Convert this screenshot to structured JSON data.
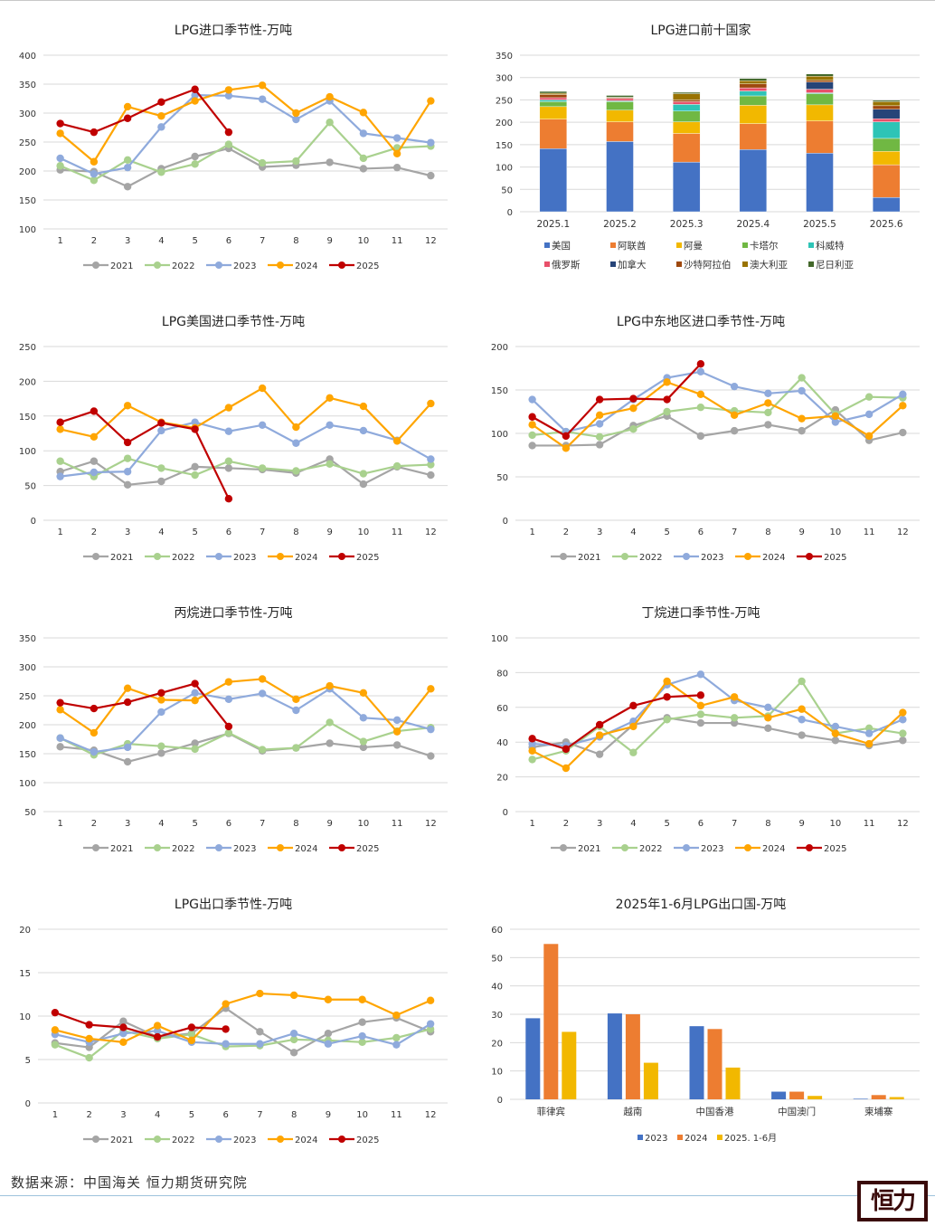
{
  "footer": {
    "source": "数据来源：中国海关  恒力期货研究院",
    "logo_text": "恒力"
  },
  "colors": {
    "2021": "#a5a5a5",
    "2022": "#a9d18e",
    "2023": "#8faadc",
    "2024": "#ffa500",
    "2025": "#c00000"
  },
  "chart_data": [
    {
      "id": "c1",
      "type": "line",
      "title": "LPG进口季节性-万吨",
      "x": [
        1,
        2,
        3,
        4,
        5,
        6,
        7,
        8,
        9,
        10,
        11,
        12
      ],
      "ylim": [
        100,
        400
      ],
      "yticks": [
        100,
        150,
        200,
        250,
        300,
        350,
        400
      ],
      "grid": true,
      "legend": "bottom",
      "series": [
        {
          "name": "2021",
          "values": [
            202,
            199,
            173,
            204,
            225,
            239,
            207,
            210,
            215,
            204,
            206,
            192
          ]
        },
        {
          "name": "2022",
          "values": [
            209,
            184,
            219,
            198,
            212,
            246,
            214,
            217,
            284,
            222,
            240,
            243
          ]
        },
        {
          "name": "2023",
          "values": [
            222,
            195,
            206,
            276,
            331,
            330,
            324,
            289,
            321,
            265,
            257,
            249
          ]
        },
        {
          "name": "2024",
          "values": [
            265,
            216,
            311,
            295,
            321,
            340,
            348,
            300,
            328,
            301,
            230,
            321
          ]
        },
        {
          "name": "2025",
          "values": [
            282,
            267,
            291,
            319,
            341,
            267
          ]
        }
      ]
    },
    {
      "id": "c2",
      "type": "bar",
      "stacked": true,
      "title": "LPG进口前十国家",
      "categories": [
        "2025.1",
        "2025.2",
        "2025.3",
        "2025.4",
        "2025.5",
        "2025.6"
      ],
      "ylim": [
        0,
        350
      ],
      "yticks": [
        0,
        50,
        100,
        150,
        200,
        250,
        300,
        350
      ],
      "grid": true,
      "legend": "bottom",
      "series": [
        {
          "name": "美国",
          "color": "#4472c4",
          "values": [
            141,
            157,
            111,
            139,
            131,
            32
          ]
        },
        {
          "name": "阿联酋",
          "color": "#ed7d31",
          "values": [
            66,
            44,
            64,
            58,
            72,
            73
          ]
        },
        {
          "name": "阿曼",
          "color": "#f2b800",
          "values": [
            28,
            26,
            26,
            41,
            36,
            30
          ]
        },
        {
          "name": "卡塔尔",
          "color": "#70b843",
          "values": [
            11,
            19,
            24,
            21,
            25,
            29
          ]
        },
        {
          "name": "科威特",
          "color": "#2ec4b6",
          "values": [
            4,
            2,
            15,
            11,
            2,
            37
          ]
        },
        {
          "name": "俄罗斯",
          "color": "#e8506a",
          "values": [
            5,
            5,
            6,
            7,
            8,
            7
          ]
        },
        {
          "name": "加拿大",
          "color": "#264478",
          "values": [
            0,
            0,
            0,
            0,
            16,
            21
          ]
        },
        {
          "name": "沙特阿拉伯",
          "color": "#9e480e",
          "values": [
            7,
            2,
            4,
            9,
            4,
            8
          ]
        },
        {
          "name": "澳大利亚",
          "color": "#997300",
          "values": [
            3,
            1,
            14,
            7,
            9,
            9
          ]
        },
        {
          "name": "尼日利亚",
          "color": "#43682b",
          "values": [
            4,
            4,
            3,
            5,
            5,
            3
          ]
        }
      ]
    },
    {
      "id": "c3",
      "type": "line",
      "title": "LPG美国进口季节性-万吨",
      "x": [
        1,
        2,
        3,
        4,
        5,
        6,
        7,
        8,
        9,
        10,
        11,
        12
      ],
      "ylim": [
        0,
        250
      ],
      "yticks": [
        0,
        50,
        100,
        150,
        200,
        250
      ],
      "grid": true,
      "legend": "bottom",
      "series": [
        {
          "name": "2021",
          "values": [
            70,
            85,
            51,
            56,
            77,
            75,
            73,
            68,
            88,
            52,
            77,
            65
          ]
        },
        {
          "name": "2022",
          "values": [
            85,
            63,
            89,
            75,
            65,
            85,
            75,
            71,
            81,
            67,
            78,
            80
          ]
        },
        {
          "name": "2023",
          "values": [
            63,
            69,
            70,
            129,
            141,
            128,
            137,
            111,
            137,
            129,
            115,
            88
          ]
        },
        {
          "name": "2024",
          "values": [
            131,
            120,
            165,
            141,
            133,
            162,
            190,
            134,
            176,
            164,
            114,
            168
          ]
        },
        {
          "name": "2025",
          "values": [
            141,
            157,
            112,
            140,
            131,
            31
          ]
        }
      ]
    },
    {
      "id": "c4",
      "type": "line",
      "title": "LPG中东地区进口季节性-万吨",
      "x": [
        1,
        2,
        3,
        4,
        5,
        6,
        7,
        8,
        9,
        10,
        11,
        12
      ],
      "ylim": [
        0,
        200
      ],
      "yticks": [
        0,
        50,
        100,
        150,
        200
      ],
      "grid": true,
      "legend": "bottom",
      "series": [
        {
          "name": "2021",
          "values": [
            86,
            86,
            87,
            109,
            120,
            97,
            103,
            110,
            103,
            127,
            92,
            101
          ]
        },
        {
          "name": "2022",
          "values": [
            98,
            102,
            96,
            105,
            125,
            130,
            126,
            124,
            164,
            122,
            142,
            141
          ]
        },
        {
          "name": "2023",
          "values": [
            139,
            102,
            111,
            139,
            164,
            171,
            154,
            146,
            149,
            113,
            122,
            145
          ]
        },
        {
          "name": "2024",
          "values": [
            110,
            83,
            121,
            129,
            159,
            145,
            121,
            135,
            117,
            120,
            97,
            132
          ]
        },
        {
          "name": "2025",
          "values": [
            119,
            97,
            139,
            140,
            139,
            180
          ]
        }
      ]
    },
    {
      "id": "c5",
      "type": "line",
      "title": "丙烷进口季节性-万吨",
      "x": [
        1,
        2,
        3,
        4,
        5,
        6,
        7,
        8,
        9,
        10,
        11,
        12
      ],
      "ylim": [
        50,
        350
      ],
      "yticks": [
        50,
        100,
        150,
        200,
        250,
        300,
        350
      ],
      "grid": true,
      "legend": "bottom",
      "series": [
        {
          "name": "2021",
          "values": [
            162,
            156,
            136,
            151,
            168,
            185,
            155,
            160,
            168,
            161,
            165,
            146
          ]
        },
        {
          "name": "2022",
          "values": [
            177,
            148,
            167,
            163,
            158,
            186,
            157,
            160,
            204,
            171,
            189,
            195
          ]
        },
        {
          "name": "2023",
          "values": [
            177,
            153,
            161,
            222,
            255,
            244,
            254,
            225,
            262,
            212,
            208,
            192
          ]
        },
        {
          "name": "2024",
          "values": [
            226,
            186,
            263,
            243,
            242,
            274,
            279,
            244,
            267,
            255,
            188,
            262
          ]
        },
        {
          "name": "2025",
          "values": [
            238,
            228,
            239,
            255,
            271,
            197
          ]
        }
      ]
    },
    {
      "id": "c6",
      "type": "line",
      "title": "丁烷进口季节性-万吨",
      "x": [
        1,
        2,
        3,
        4,
        5,
        6,
        7,
        8,
        9,
        10,
        11,
        12
      ],
      "ylim": [
        0,
        100
      ],
      "yticks": [
        0,
        20,
        40,
        60,
        80,
        100
      ],
      "grid": true,
      "legend": "bottom",
      "series": [
        {
          "name": "2021",
          "values": [
            37,
            40,
            33,
            50,
            54,
            51,
            51,
            48,
            44,
            41,
            38,
            41
          ]
        },
        {
          "name": "2022",
          "values": [
            30,
            35,
            49,
            34,
            53,
            56,
            54,
            55,
            75,
            45,
            48,
            45
          ]
        },
        {
          "name": "2023",
          "values": [
            39,
            38,
            43,
            52,
            73,
            79,
            64,
            60,
            53,
            49,
            45,
            53
          ]
        },
        {
          "name": "2024",
          "values": [
            35,
            25,
            44,
            49,
            75,
            61,
            66,
            54,
            59,
            45,
            39,
            57
          ]
        },
        {
          "name": "2025",
          "values": [
            42,
            36,
            50,
            61,
            66,
            67
          ]
        }
      ]
    },
    {
      "id": "c7",
      "type": "line",
      "title": "LPG出口季节性-万吨",
      "x": [
        1,
        2,
        3,
        4,
        5,
        6,
        7,
        8,
        9,
        10,
        11,
        12
      ],
      "ylim": [
        0,
        20
      ],
      "yticks": [
        0,
        5,
        10,
        15,
        20
      ],
      "grid": true,
      "legend": "bottom",
      "series": [
        {
          "name": "2021",
          "values": [
            6.9,
            6.4,
            9.4,
            7.6,
            8.0,
            10.9,
            8.2,
            5.8,
            8.0,
            9.3,
            9.8,
            8.2
          ]
        },
        {
          "name": "2022",
          "values": [
            6.7,
            5.2,
            8.3,
            7.4,
            7.9,
            6.5,
            6.6,
            7.3,
            7.2,
            7.0,
            7.5,
            8.5
          ]
        },
        {
          "name": "2023",
          "values": [
            7.9,
            7.0,
            8.0,
            8.3,
            7.0,
            6.8,
            6.8,
            8.0,
            6.8,
            7.7,
            6.7,
            9.1
          ]
        },
        {
          "name": "2024",
          "values": [
            8.4,
            7.4,
            7.0,
            8.9,
            7.2,
            11.4,
            12.6,
            12.4,
            11.9,
            11.9,
            10.1,
            11.8
          ]
        },
        {
          "name": "2025",
          "values": [
            10.4,
            9.0,
            8.7,
            7.6,
            8.7,
            8.5
          ]
        }
      ]
    },
    {
      "id": "c8",
      "type": "bar",
      "stacked": false,
      "title": "2025年1-6月LPG出口国-万吨",
      "categories": [
        "菲律宾",
        "越南",
        "中国香港",
        "中国澳门",
        "柬埔寨"
      ],
      "ylim": [
        0,
        60
      ],
      "yticks": [
        0,
        10,
        20,
        30,
        40,
        50,
        60
      ],
      "grid": true,
      "legend": "bottom",
      "series": [
        {
          "name": "2023",
          "color": "#4472c4",
          "values": [
            28.6,
            30.3,
            25.8,
            2.7,
            0.2
          ]
        },
        {
          "name": "2024",
          "color": "#ed7d31",
          "values": [
            54.8,
            30.0,
            24.8,
            2.7,
            1.5
          ]
        },
        {
          "name": "2025. 1-6月",
          "color": "#f2b800",
          "values": [
            23.8,
            12.9,
            11.2,
            1.2,
            0.8
          ]
        }
      ]
    }
  ]
}
